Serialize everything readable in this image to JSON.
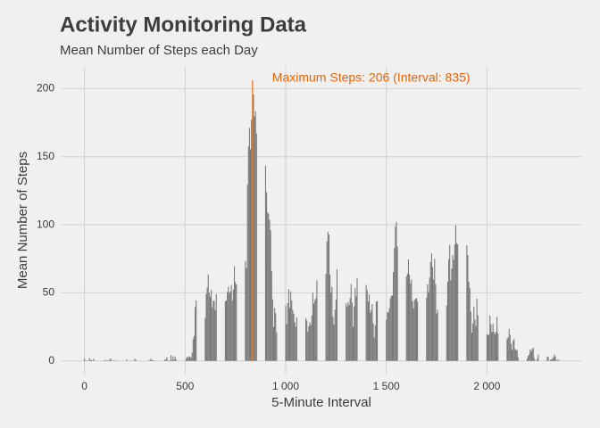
{
  "chart_data": {
    "type": "bar",
    "title": "Activity Monitoring Data",
    "subtitle": "Mean Number of Steps each Day",
    "x_label": "5-Minute Interval",
    "y_label": "Mean Number of Steps",
    "annotation": "Maximum Steps: 206 (Interval: 835)",
    "color": "#777777",
    "highlight_color": "#e0650e",
    "grid": true,
    "xlim": [
      -118,
      2473
    ],
    "ylim": [
      -10,
      216
    ],
    "xticks": [
      0,
      500,
      {
        "value": 1000,
        "label": "1 000"
      },
      {
        "value": 1500,
        "label": "1 500"
      },
      {
        "value": 2000,
        "label": "2 000"
      }
    ],
    "yticks": [
      0,
      50,
      100,
      150,
      200
    ],
    "x": [
      0,
      5,
      10,
      15,
      20,
      25,
      30,
      35,
      40,
      45,
      50,
      55,
      100,
      105,
      110,
      115,
      120,
      125,
      130,
      135,
      140,
      145,
      150,
      155,
      200,
      205,
      210,
      215,
      220,
      225,
      230,
      235,
      240,
      245,
      250,
      255,
      300,
      305,
      310,
      315,
      320,
      325,
      330,
      335,
      340,
      345,
      350,
      355,
      400,
      405,
      410,
      415,
      420,
      425,
      430,
      435,
      440,
      445,
      450,
      455,
      500,
      505,
      510,
      515,
      520,
      525,
      530,
      535,
      540,
      545,
      550,
      555,
      600,
      605,
      610,
      615,
      620,
      625,
      630,
      635,
      640,
      645,
      650,
      655,
      700,
      705,
      710,
      715,
      720,
      725,
      730,
      735,
      740,
      745,
      750,
      755,
      800,
      805,
      810,
      815,
      820,
      825,
      830,
      835,
      840,
      845,
      850,
      855,
      900,
      905,
      910,
      915,
      920,
      925,
      930,
      935,
      940,
      945,
      950,
      955,
      1000,
      1005,
      1010,
      1015,
      1020,
      1025,
      1030,
      1035,
      1040,
      1045,
      1050,
      1055,
      1100,
      1105,
      1110,
      1115,
      1120,
      1125,
      1130,
      1135,
      1140,
      1145,
      1150,
      1155,
      1200,
      1205,
      1210,
      1215,
      1220,
      1225,
      1230,
      1235,
      1240,
      1245,
      1250,
      1255,
      1300,
      1305,
      1310,
      1315,
      1320,
      1325,
      1330,
      1335,
      1340,
      1345,
      1350,
      1355,
      1400,
      1405,
      1410,
      1415,
      1420,
      1425,
      1430,
      1435,
      1440,
      1445,
      1450,
      1455,
      1500,
      1505,
      1510,
      1515,
      1520,
      1525,
      1530,
      1535,
      1540,
      1545,
      1550,
      1555,
      1600,
      1605,
      1610,
      1615,
      1620,
      1625,
      1630,
      1635,
      1640,
      1645,
      1650,
      1655,
      1700,
      1705,
      1710,
      1715,
      1720,
      1725,
      1730,
      1735,
      1740,
      1745,
      1750,
      1755,
      1800,
      1805,
      1810,
      1815,
      1820,
      1825,
      1830,
      1835,
      1840,
      1845,
      1850,
      1855,
      1900,
      1905,
      1910,
      1915,
      1920,
      1925,
      1930,
      1935,
      1940,
      1945,
      1950,
      1955,
      2000,
      2005,
      2010,
      2015,
      2020,
      2025,
      2030,
      2035,
      2040,
      2045,
      2050,
      2055,
      2100,
      2105,
      2110,
      2115,
      2120,
      2125,
      2130,
      2135,
      2140,
      2145,
      2150,
      2155,
      2200,
      2205,
      2210,
      2215,
      2220,
      2225,
      2230,
      2235,
      2240,
      2245,
      2250,
      2255,
      2300,
      2305,
      2310,
      2315,
      2320,
      2325,
      2330,
      2335,
      2340,
      2345,
      2350,
      2355
    ],
    "values": [
      1.7,
      0.3,
      0.1,
      0.2,
      0.1,
      2.1,
      0.5,
      0.9,
      0,
      1.5,
      0.3,
      0.1,
      0.3,
      0.7,
      0.2,
      0.3,
      0,
      1.1,
      1.8,
      0.2,
      0.2,
      0.4,
      0.3,
      0,
      0,
      0,
      1.1,
      0,
      0,
      0.1,
      0,
      0.2,
      0,
      0,
      1.5,
      0.9,
      0,
      0,
      0,
      0,
      0.2,
      0.6,
      1.6,
      0.6,
      0.5,
      0.1,
      0,
      0,
      1.2,
      0.9,
      2.6,
      0,
      0.3,
      0.4,
      4.1,
      0.7,
      3.5,
      0.8,
      3.1,
      1.1,
      0,
      1.6,
      3,
      2.2,
      3.3,
      3,
      2.1,
      6.1,
      16,
      18.3,
      39.5,
      44.5,
      31.5,
      49.3,
      53.8,
      63.5,
      50,
      47.1,
      52.2,
      39.3,
      44,
      44.2,
      37.4,
      49,
      43.8,
      44.4,
      50.5,
      54.5,
      49.9,
      51,
      55.7,
      44.3,
      52.3,
      69.5,
      57.8,
      56.2,
      73.4,
      68.2,
      129.4,
      157.5,
      171.2,
      155.4,
      177.3,
      206.2,
      195.9,
      179.6,
      183.4,
      167,
      143.5,
      124,
      109.1,
      108.1,
      103.7,
      96,
      66.2,
      45.2,
      24.8,
      38.8,
      35,
      21.1,
      40.6,
      27,
      42.4,
      52.7,
      38.9,
      50.8,
      44.3,
      37.4,
      34.7,
      28.3,
      25.1,
      31.9,
      31.4,
      29.7,
      21.3,
      25.5,
      28.4,
      26.5,
      33.4,
      50,
      42,
      44.6,
      46,
      59.2,
      63.9,
      87.7,
      94.8,
      92.8,
      63.4,
      50.2,
      54.5,
      32.4,
      26.5,
      37.7,
      45.1,
      67.3,
      42.3,
      39.9,
      43.3,
      41,
      46.2,
      56.4,
      42.8,
      25.1,
      40,
      53.5,
      47.3,
      60.8,
      55.8,
      52,
      43.6,
      48.7,
      35.5,
      37.5,
      41.8,
      27.5,
      17.1,
      26.1,
      43.6,
      43.8,
      30,
      36.1,
      35.5,
      38.8,
      46,
      47.8,
      48.1,
      65.3,
      82.9,
      98.7,
      102.1,
      84,
      62.1,
      64.1,
      74.5,
      63.2,
      56.9,
      59.8,
      43.9,
      38.6,
      44.7,
      45.5,
      46.2,
      43.7,
      46.6,
      56.3,
      50.7,
      61.2,
      72.7,
      78.9,
      68.9,
      59.7,
      75.1,
      56.5,
      34.8,
      37.5,
      40.7,
      58,
      74.7,
      85.3,
      59.3,
      67.8,
      77.7,
      74.2,
      85.3,
      99.5,
      86.6,
      85.6,
      84.9,
      77.8,
      58,
      53.4,
      36.3,
      20.7,
      27.4,
      40,
      30.2,
      25.5,
      45.7,
      33.5,
      19.6,
      19,
      19.3,
      33.3,
      26.8,
      21.2,
      27.3,
      21.3,
      19.5,
      21.3,
      32.3,
      20.2,
      15.9,
      17.2,
      23.5,
      19.2,
      12.5,
      8,
      14.7,
      16.3,
      8.7,
      7.8,
      8.1,
      2.6,
      1.5,
      3.7,
      4.8,
      8.5,
      7.1,
      8.7,
      9.8,
      2.2,
      0.3,
      0.1,
      1.6,
      4.6,
      3.3,
      2.8,
      0,
      0.8,
      1,
      1.6,
      2.6,
      4.7,
      3.3,
      0.6,
      0.2,
      1.1
    ]
  }
}
